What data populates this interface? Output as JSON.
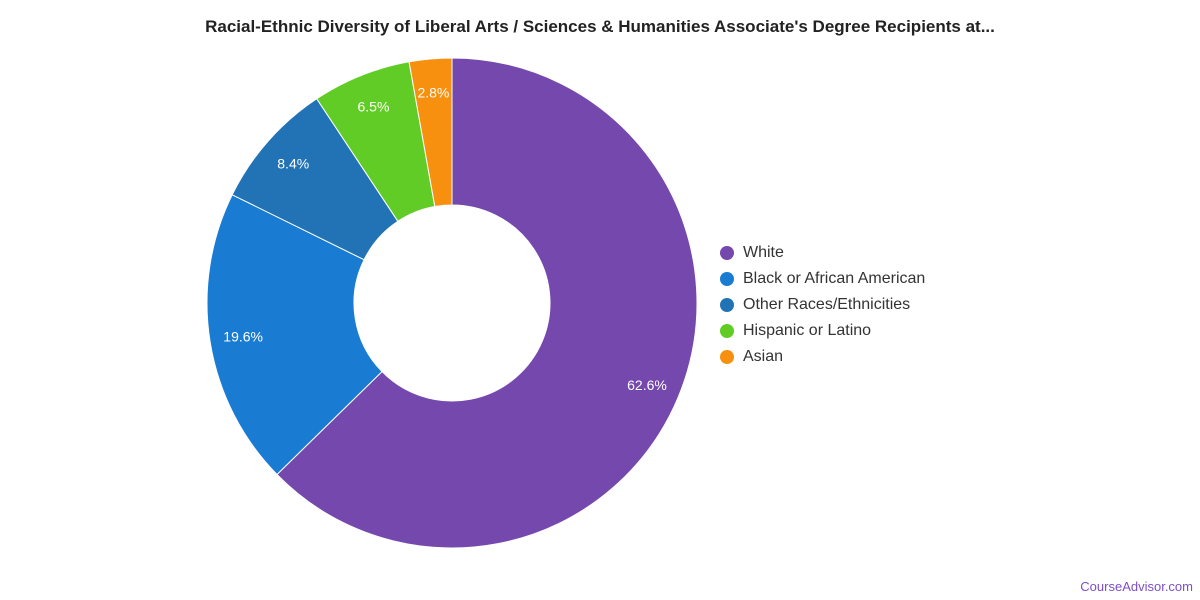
{
  "chart_data": {
    "type": "pie",
    "title": "Racial-Ethnic Diversity of Liberal Arts / Sciences & Humanities Associate's Degree Recipients at...",
    "categories": [
      "White",
      "Black or African American",
      "Other Races/Ethnicities",
      "Hispanic or Latino",
      "Asian"
    ],
    "values": [
      62.6,
      19.6,
      8.4,
      6.5,
      2.8
    ],
    "labels": [
      "62.6%",
      "19.6%",
      "8.4%",
      "6.5%",
      "2.8%"
    ],
    "colors": [
      "#7448ad",
      "#1a7bd3",
      "#2173b6",
      "#62cc26",
      "#f7900f"
    ],
    "donut": true,
    "legend_position": "right"
  },
  "brand": {
    "text": "CourseAdvisor.com"
  }
}
